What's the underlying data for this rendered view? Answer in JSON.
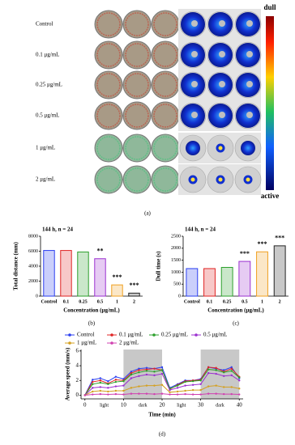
{
  "figure_a": {
    "rows": [
      "Control",
      "0.1 μg/mL",
      "0.25 μg/mL",
      "0.5 μg/mL",
      "1 μg/mL",
      "2 μg/mL"
    ],
    "colorbar": {
      "top": "dull",
      "bottom": "active"
    },
    "caption": "(a)"
  },
  "chart_data": [
    {
      "type": "bar",
      "title": "144 h, n = 24",
      "y_label": "Total distance (mm)",
      "x_label": "Concentration (μg/mL)",
      "caption": "(b)",
      "categories": [
        "Control",
        "0.1",
        "0.25",
        "0.5",
        "1",
        "2"
      ],
      "values": [
        6100,
        6100,
        5900,
        5000,
        1500,
        400
      ],
      "colors": [
        "#2b3ff0",
        "#e02424",
        "#2ca02c",
        "#9b30d0",
        "#f0a020",
        "#222222"
      ],
      "significance": [
        null,
        null,
        null,
        "**",
        "***",
        "***"
      ],
      "ylim": [
        0,
        8000
      ],
      "yticks": [
        0,
        2000,
        4000,
        6000,
        8000
      ]
    },
    {
      "type": "bar",
      "title": "144 h, n = 24",
      "y_label": "Dull time (s)",
      "x_label": "Concentration (μg/mL)",
      "caption": "(c)",
      "categories": [
        "Control",
        "0.1",
        "0.25",
        "0.5",
        "1",
        "2"
      ],
      "values": [
        1150,
        1150,
        1200,
        1450,
        1850,
        2100
      ],
      "colors": [
        "#2b3ff0",
        "#e02424",
        "#2ca02c",
        "#9b30d0",
        "#f0a020",
        "#222222"
      ],
      "significance": [
        null,
        null,
        null,
        "***",
        "***",
        "***"
      ],
      "ylim": [
        0,
        2500
      ],
      "yticks": [
        0,
        500,
        1000,
        1500,
        2000,
        2500
      ]
    },
    {
      "type": "line",
      "y_label": "Average speed (mm/s)",
      "x_label": "Time (min)",
      "caption": "(d)",
      "x": [
        0,
        2,
        4,
        6,
        8,
        10,
        12,
        14,
        16,
        18,
        20,
        22,
        24,
        26,
        28,
        30,
        32,
        34,
        36,
        38,
        40
      ],
      "phases": [
        {
          "label": "light",
          "start": 0,
          "end": 10,
          "shaded": false
        },
        {
          "label": "dark",
          "start": 10,
          "end": 20,
          "shaded": true
        },
        {
          "label": "light",
          "start": 20,
          "end": 30,
          "shaded": false
        },
        {
          "label": "dark",
          "start": 30,
          "end": 40,
          "shaded": true
        }
      ],
      "series": [
        {
          "name": "Control",
          "color": "#2b3ff0",
          "values": [
            0,
            2.1,
            2.3,
            1.9,
            2.5,
            2.2,
            3.2,
            3.6,
            3.7,
            3.6,
            3.8,
            1.0,
            1.5,
            2.0,
            2.0,
            2.2,
            3.8,
            3.6,
            3.4,
            3.8,
            2.3
          ]
        },
        {
          "name": "0.1 μg/mL",
          "color": "#e02424",
          "values": [
            0,
            1.8,
            2.0,
            1.6,
            2.1,
            2.0,
            3.0,
            3.4,
            3.5,
            3.6,
            3.4,
            0.8,
            1.4,
            1.9,
            2.0,
            2.1,
            3.8,
            3.7,
            3.2,
            3.6,
            2.5
          ]
        },
        {
          "name": "0.25 μg/mL",
          "color": "#2ca02c",
          "values": [
            0,
            1.5,
            1.7,
            1.5,
            1.8,
            1.9,
            2.8,
            3.1,
            3.3,
            3.2,
            3.4,
            0.9,
            1.3,
            1.8,
            1.9,
            2.0,
            3.5,
            3.4,
            3.1,
            3.3,
            2.4
          ]
        },
        {
          "name": "0.5 μg/mL",
          "color": "#9b30d0",
          "values": [
            0,
            1.0,
            1.1,
            1.0,
            1.2,
            1.3,
            2.3,
            2.6,
            2.8,
            2.7,
            2.9,
            0.7,
            1.0,
            1.3,
            1.4,
            1.5,
            3.0,
            2.9,
            2.6,
            2.7,
            2.0
          ]
        },
        {
          "name": "1 μg/mL",
          "color": "#d4a020",
          "values": [
            0,
            0.5,
            0.6,
            0.5,
            0.6,
            0.6,
            1.0,
            1.2,
            1.3,
            1.3,
            1.4,
            0.4,
            0.5,
            0.6,
            0.7,
            0.7,
            1.2,
            1.3,
            1.1,
            1.1,
            0.9
          ]
        },
        {
          "name": "2 μg/mL",
          "color": "#d040b0",
          "values": [
            0,
            0.1,
            0.15,
            0.1,
            0.15,
            0.1,
            0.2,
            0.2,
            0.2,
            0.15,
            0.2,
            0.1,
            0.1,
            0.15,
            0.1,
            0.1,
            0.2,
            0.2,
            0.15,
            0.15,
            0.1
          ]
        }
      ],
      "xlim": [
        -1,
        41
      ],
      "xticks": [
        0,
        10,
        20,
        30,
        40
      ],
      "ylim": [
        -0.5,
        6.2
      ],
      "yticks": [
        0,
        2,
        4,
        6
      ]
    }
  ]
}
